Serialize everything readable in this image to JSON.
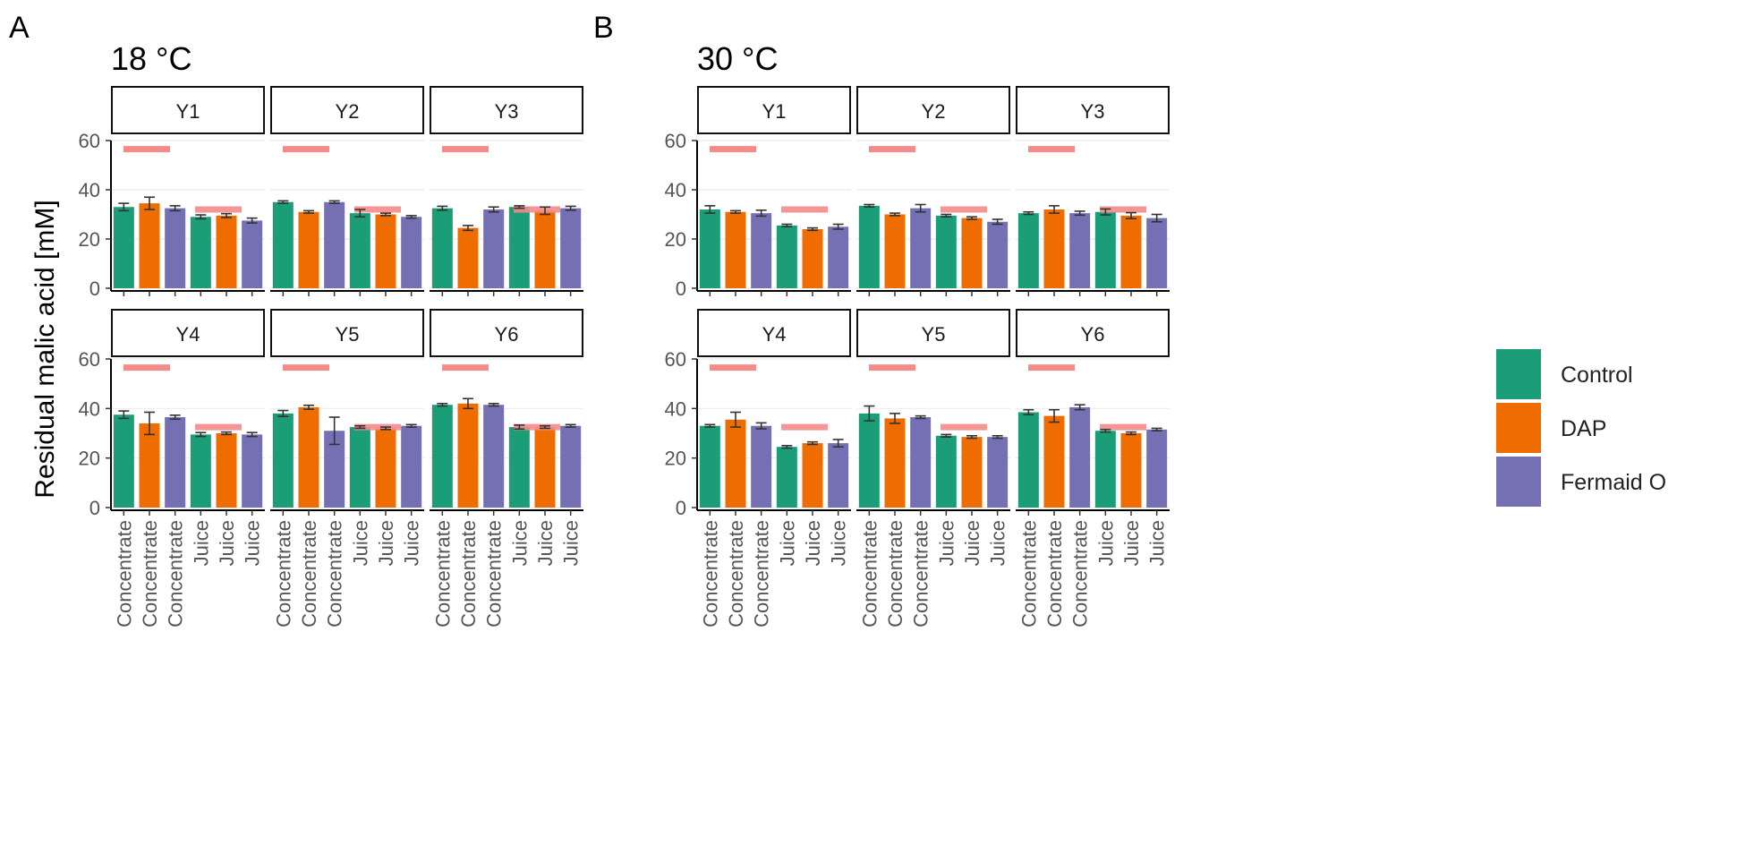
{
  "colors": {
    "control": "#1b9e77",
    "dap": "#ef6c00",
    "fermaid": "#7570b3",
    "reference": "#f38b8b",
    "error_bar": "#333333",
    "strip_border": "#111111",
    "grid": "#ebebeb"
  },
  "chart_data": {
    "type": "bar",
    "ylabel": "Residual malic acid [mM]",
    "ylim": [
      0,
      60
    ],
    "yticks": [
      0,
      20,
      40,
      60
    ],
    "x_labels": [
      "Concentrate",
      "Concentrate",
      "Concentrate",
      "Juice",
      "Juice",
      "Juice"
    ],
    "legend": {
      "position": "right",
      "entries": [
        {
          "name": "Control",
          "color_key": "control"
        },
        {
          "name": "DAP",
          "color_key": "dap"
        },
        {
          "name": "Fermaid O",
          "color_key": "fermaid"
        }
      ]
    },
    "series_order": [
      "control",
      "dap",
      "fermaid",
      "control",
      "dap",
      "fermaid"
    ],
    "panels": [
      {
        "label": "A",
        "title": "18 °C",
        "facets": [
          {
            "name": "Y1",
            "values": [
              33.0,
              34.5,
              32.5,
              29.0,
              29.5,
              27.5
            ],
            "errors": [
              1.5,
              2.5,
              1.0,
              0.8,
              0.8,
              1.0
            ],
            "ref": {
              "concentrate": 56.5,
              "juice": 32.0
            }
          },
          {
            "name": "Y2",
            "values": [
              35.0,
              31.0,
              35.0,
              30.5,
              30.0,
              29.0
            ],
            "errors": [
              0.5,
              0.5,
              0.5,
              1.5,
              0.5,
              0.5
            ],
            "ref": {
              "concentrate": 56.5,
              "juice": 32.0
            }
          },
          {
            "name": "Y3",
            "values": [
              32.5,
              24.5,
              32.0,
              33.0,
              31.5,
              32.5
            ],
            "errors": [
              0.8,
              1.0,
              1.0,
              0.5,
              1.5,
              0.8
            ],
            "ref": {
              "concentrate": 56.5,
              "juice": 32.0
            }
          },
          {
            "name": "Y4",
            "values": [
              37.5,
              34.0,
              36.5,
              29.5,
              30.0,
              29.5
            ],
            "errors": [
              1.5,
              4.5,
              0.8,
              0.8,
              0.5,
              0.8
            ],
            "ref": {
              "concentrate": 56.5,
              "juice": 32.5
            }
          },
          {
            "name": "Y5",
            "values": [
              38.0,
              40.5,
              31.0,
              32.5,
              32.0,
              33.0
            ],
            "errors": [
              1.2,
              0.8,
              5.5,
              0.5,
              0.5,
              0.5
            ],
            "ref": {
              "concentrate": 56.5,
              "juice": 32.5
            }
          },
          {
            "name": "Y6",
            "values": [
              41.5,
              42.0,
              41.5,
              32.5,
              32.5,
              33.0
            ],
            "errors": [
              0.5,
              2.0,
              0.5,
              0.8,
              0.5,
              0.5
            ],
            "ref": {
              "concentrate": 56.5,
              "juice": 32.5
            }
          }
        ]
      },
      {
        "label": "B",
        "title": "30 °C",
        "facets": [
          {
            "name": "Y1",
            "values": [
              32.0,
              31.0,
              30.5,
              25.5,
              24.0,
              25.0
            ],
            "errors": [
              1.5,
              0.5,
              1.2,
              0.5,
              0.5,
              1.0
            ],
            "ref": {
              "concentrate": 56.5,
              "juice": 32.0
            }
          },
          {
            "name": "Y2",
            "values": [
              33.5,
              30.0,
              32.5,
              29.5,
              28.5,
              27.0
            ],
            "errors": [
              0.5,
              0.5,
              1.5,
              0.5,
              0.5,
              1.0
            ],
            "ref": {
              "concentrate": 56.5,
              "juice": 32.0
            }
          },
          {
            "name": "Y3",
            "values": [
              30.5,
              32.0,
              30.5,
              31.0,
              29.5,
              28.5
            ],
            "errors": [
              0.5,
              1.5,
              0.8,
              1.2,
              1.2,
              1.5
            ],
            "ref": {
              "concentrate": 56.5,
              "juice": 32.0
            }
          },
          {
            "name": "Y4",
            "values": [
              33.0,
              35.5,
              33.0,
              24.5,
              26.0,
              26.0
            ],
            "errors": [
              0.5,
              3.0,
              1.2,
              0.5,
              0.5,
              1.5
            ],
            "ref": {
              "concentrate": 56.5,
              "juice": 32.5
            }
          },
          {
            "name": "Y5",
            "values": [
              38.0,
              36.0,
              36.5,
              29.0,
              28.5,
              28.5
            ],
            "errors": [
              3.0,
              2.0,
              0.5,
              0.5,
              0.5,
              0.5
            ],
            "ref": {
              "concentrate": 56.5,
              "juice": 32.5
            }
          },
          {
            "name": "Y6",
            "values": [
              38.5,
              37.0,
              40.5,
              31.0,
              30.0,
              31.5
            ],
            "errors": [
              1.0,
              2.5,
              1.0,
              0.5,
              0.5,
              0.5
            ],
            "ref": {
              "concentrate": 56.5,
              "juice": 32.5
            }
          }
        ]
      }
    ]
  }
}
